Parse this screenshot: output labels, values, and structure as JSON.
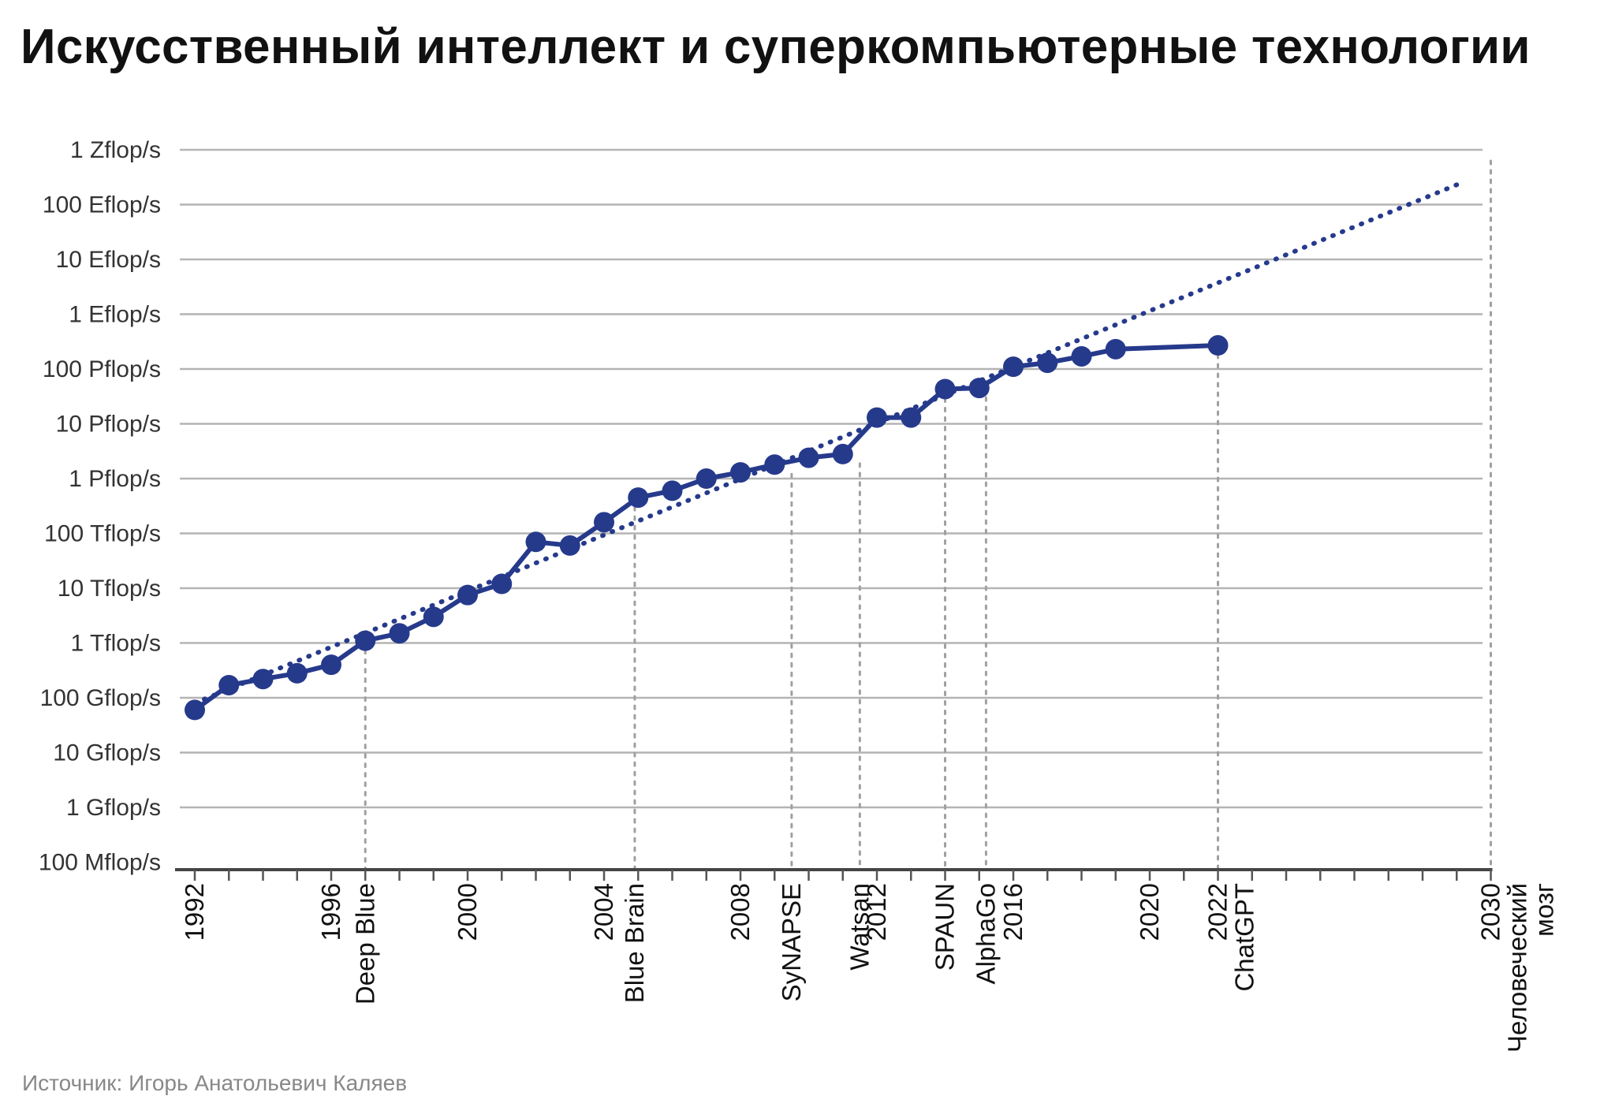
{
  "title": "Искусственный интеллект и суперкомпьютерные технологии",
  "source": "Источник: Игорь Анатольевич Каляев",
  "chart_data": {
    "type": "line",
    "title": "Искусственный интеллект и суперкомпьютерные технологии",
    "y_scale": "log10",
    "ylim": [
      100000000.0,
      1e+21
    ],
    "xlim": [
      1992,
      2030
    ],
    "y_ticks": [
      {
        "value": 1e+21,
        "label": "1 Zflop/s"
      },
      {
        "value": 1e+20,
        "label": "100 Eflop/s"
      },
      {
        "value": 1e+19,
        "label": "10 Eflop/s"
      },
      {
        "value": 1e+18,
        "label": "1 Eflop/s"
      },
      {
        "value": 1e+17,
        "label": "100 Pflop/s"
      },
      {
        "value": 1e+16,
        "label": "10 Pflop/s"
      },
      {
        "value": 1000000000000000.0,
        "label": "1 Pflop/s"
      },
      {
        "value": 100000000000000.0,
        "label": "100 Tflop/s"
      },
      {
        "value": 10000000000000.0,
        "label": "10 Tflop/s"
      },
      {
        "value": 1000000000000.0,
        "label": "1 Tflop/s"
      },
      {
        "value": 100000000000.0,
        "label": "100 Gflop/s"
      },
      {
        "value": 10000000000.0,
        "label": "10 Gflop/s"
      },
      {
        "value": 1000000000.0,
        "label": "1 Gflop/s"
      },
      {
        "value": 100000000.0,
        "label": "100 Mflop/s"
      }
    ],
    "x_ticks": [
      1992,
      1996,
      2000,
      2004,
      2008,
      2012,
      2016,
      2020,
      2022,
      2030
    ],
    "grid": "horizontal",
    "series": [
      {
        "style": "solid-with-markers",
        "color": "#263a8c",
        "x": [
          1992,
          1993,
          1994,
          1995,
          1996,
          1997,
          1998,
          1999,
          2000,
          2001,
          2002,
          2003,
          2004,
          2005,
          2006,
          2007,
          2008,
          2009,
          2010,
          2011,
          2012,
          2013,
          2014,
          2015,
          2016,
          2017,
          2018,
          2019,
          2022
        ],
        "y": [
          60000000000.0,
          170000000000.0,
          220000000000.0,
          280000000000.0,
          400000000000.0,
          1100000000000.0,
          1500000000000.0,
          3000000000000.0,
          7500000000000.0,
          12000000000000.0,
          70000000000000.0,
          60000000000000.0,
          160000000000000.0,
          450000000000000.0,
          600000000000000.0,
          1000000000000000.0,
          1300000000000000.0,
          1800000000000000.0,
          2400000000000000.0,
          2800000000000000.0,
          1.3e+16,
          1.3e+16,
          4.3e+16,
          4.5e+16,
          1.1e+17,
          1.3e+17,
          1.7e+17,
          2.3e+17,
          2.7e+17
        ]
      },
      {
        "style": "dotted-trend",
        "color": "#263a8c",
        "x": [
          1992,
          2029
        ],
        "y": [
          80000000000.0,
          2.3e+20
        ]
      }
    ],
    "annotations": [
      {
        "x": 1997,
        "label": "Deep Blue"
      },
      {
        "x": 2004.9,
        "label": "Blue Brain"
      },
      {
        "x": 2009.5,
        "label": "SyNAPSE"
      },
      {
        "x": 2011.5,
        "label": "Watsan"
      },
      {
        "x": 2014,
        "label": "SPAUN"
      },
      {
        "x": 2015.2,
        "label": "AlphaGo"
      },
      {
        "x": 2022,
        "label": "ChatGPT"
      },
      {
        "x": 2030,
        "label": "Человеческий мозг"
      }
    ]
  }
}
